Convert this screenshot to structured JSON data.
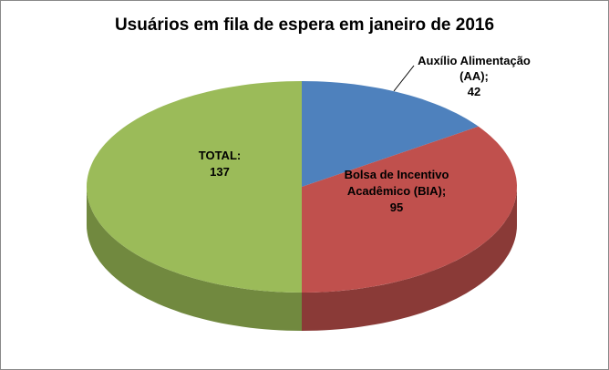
{
  "labels": {
    "total": [
      "TOTAL:",
      "137"
    ],
    "bia": [
      "Bolsa de Incentivo",
      "Acadêmico (BIA);",
      "95"
    ],
    "aa": [
      "Auxílio Alimentação",
      "(AA);",
      "42"
    ]
  },
  "chart_data": {
    "type": "pie",
    "is_3d": true,
    "title": "Usuários em fila de espera em janeiro de 2016",
    "start_angle_deg": 0,
    "direction": "clockwise",
    "legend": "none",
    "total": 274,
    "slices": [
      {
        "label": "Auxílio Alimentação (AA)",
        "value": 42,
        "color": "#4E81BD",
        "side_color": "#31537C",
        "data_label_placement": "outside-with-leader-line"
      },
      {
        "label": "Bolsa de Incentivo Acadêmico (BIA)",
        "value": 95,
        "color": "#C0504D",
        "side_color": "#8A3A37",
        "data_label_placement": "inside"
      },
      {
        "label": "TOTAL",
        "value": 137,
        "color": "#9BBB59",
        "side_color": "#71893F",
        "data_label_placement": "inside"
      }
    ]
  }
}
